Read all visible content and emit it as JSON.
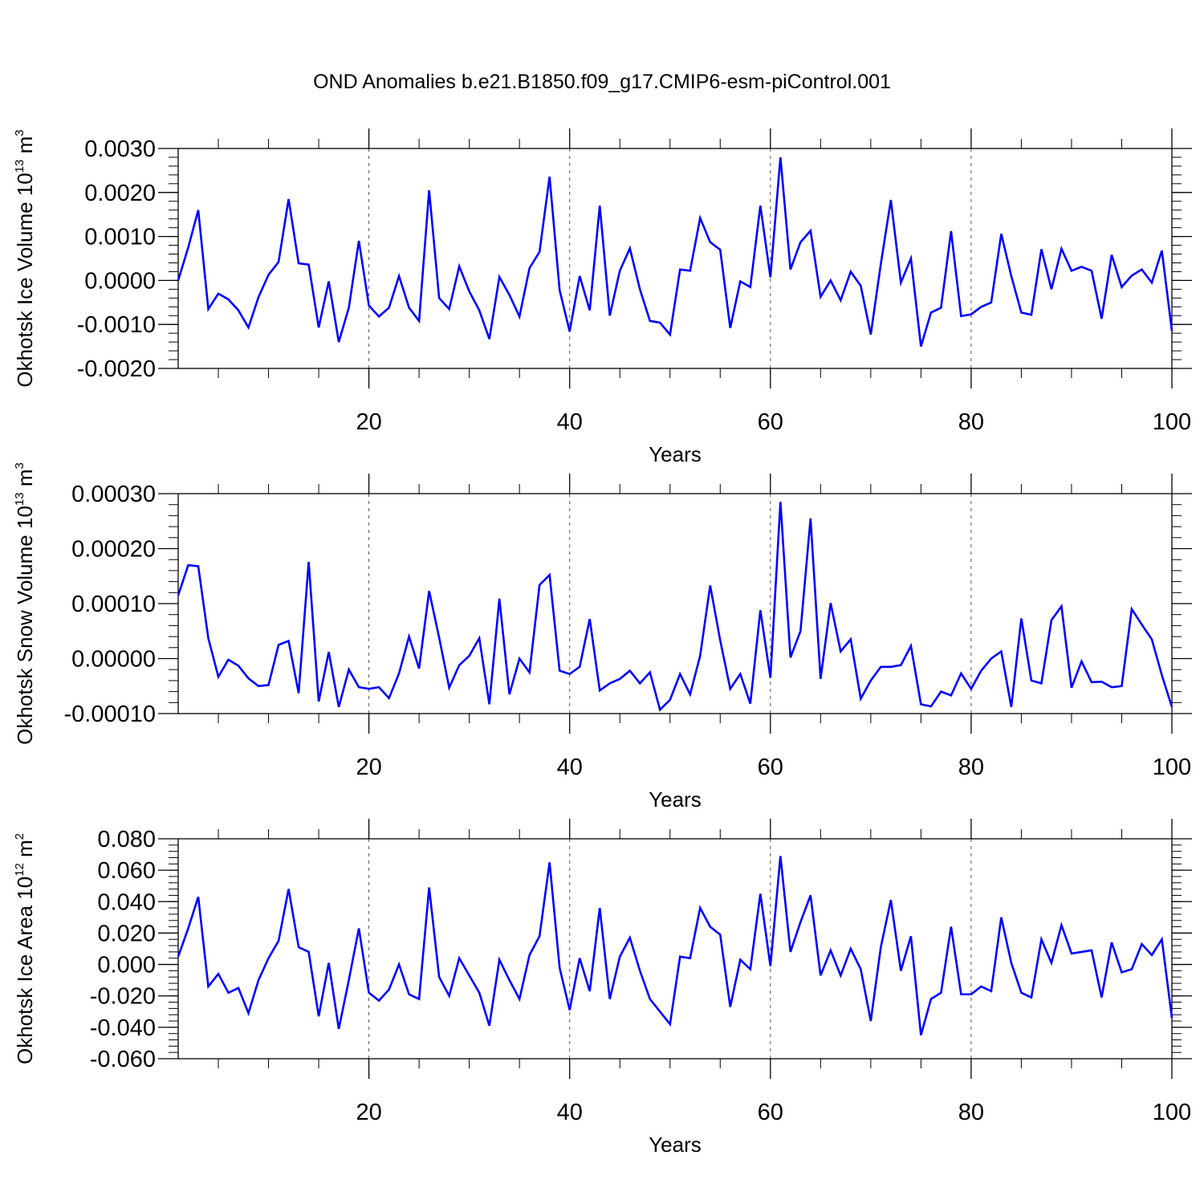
{
  "colors": {
    "line": "#0000ff",
    "axis": "#000000",
    "grid": "#555555"
  },
  "chart_data": [
    {
      "type": "line",
      "title": "OND Anomalies b.e21.B1850.f09_g17.CMIP6-esm-piControl.001",
      "xlabel": "Years",
      "ylabel": "Okhotsk Ice Volume",
      "ylabel_unit_base": "10",
      "ylabel_unit_exp": "13",
      "ylabel_unit_symbol": "m",
      "ylabel_unit_symbol_exp": "3",
      "xlim": [
        1,
        100
      ],
      "ylim": [
        -0.002,
        0.003
      ],
      "xticks": [
        "20",
        "40",
        "60",
        "80",
        "100"
      ],
      "yticks": [
        "0.0030",
        "0.0020",
        "0.0010",
        "0.0000",
        "-0.0010",
        "-0.0020"
      ],
      "grid_x": [
        20,
        40,
        60,
        80
      ],
      "series": [
        {
          "name": "Okhotsk Ice Volume",
          "values": [
            0.0,
            0.00075,
            0.0016,
            -0.00065,
            -0.0003,
            -0.00043,
            -0.00068,
            -0.00107,
            -0.00038,
            0.00013,
            0.00042,
            0.00185,
            0.00039,
            0.00036,
            -0.00107,
            -2e-05,
            -0.0014,
            -0.00062,
            0.0009,
            -0.00057,
            -0.00082,
            -0.00062,
            0.0001,
            -0.00062,
            -0.00092,
            0.00205,
            -0.0004,
            -0.00065,
            0.00032,
            -0.00025,
            -0.00068,
            -0.00133,
            8e-05,
            -0.00033,
            -0.00082,
            0.00028,
            0.00065,
            0.00236,
            -0.00022,
            -0.00116,
            0.0001,
            -0.00068,
            0.0017,
            -0.0008,
            0.00022,
            0.00073,
            -0.0002,
            -0.00092,
            -0.00096,
            -0.00123,
            0.00025,
            0.00022,
            0.00142,
            0.00087,
            0.0007,
            -0.00108,
            -2e-05,
            -0.00015,
            0.0017,
            7e-05,
            0.0028,
            0.00025,
            0.00087,
            0.00113,
            -0.00037,
            0.0,
            -0.00045,
            0.0002,
            -0.00012,
            -0.00123,
            0.00037,
            0.00183,
            -5e-05,
            0.0005,
            -0.0015,
            -0.00073,
            -0.00062,
            0.00112,
            -0.00081,
            -0.00077,
            -0.0006,
            -0.0005,
            0.00106,
            0.0001,
            -0.00073,
            -0.00078,
            0.00071,
            -0.0002,
            0.00072,
            0.00022,
            0.00031,
            0.00022,
            -0.00087,
            0.00058,
            -0.00015,
            0.00011,
            0.00025,
            -5e-05,
            0.00068,
            -0.00115
          ]
        }
      ]
    },
    {
      "type": "line",
      "xlabel": "Years",
      "ylabel": "Okhotsk Snow Volume",
      "ylabel_unit_base": "10",
      "ylabel_unit_exp": "13",
      "ylabel_unit_symbol": "m",
      "ylabel_unit_symbol_exp": "3",
      "xlim": [
        1,
        100
      ],
      "ylim": [
        -0.0001,
        0.0003
      ],
      "xticks": [
        "20",
        "40",
        "60",
        "80",
        "100"
      ],
      "yticks": [
        "0.00030",
        "0.00020",
        "0.00010",
        "0.00000",
        "-0.00010"
      ],
      "grid_x": [
        20,
        40,
        60,
        80
      ],
      "series": [
        {
          "name": "Okhotsk Snow Volume",
          "values": [
            0.000115,
            0.00017,
            0.000168,
            3.7e-05,
            -3.3e-05,
            -2e-06,
            -1.3e-05,
            -3.6e-05,
            -5e-05,
            -4.8e-05,
            2.5e-05,
            3.2e-05,
            -6.3e-05,
            0.000176,
            -7.8e-05,
            1.2e-05,
            -8.8e-05,
            -2e-05,
            -5.2e-05,
            -5.5e-05,
            -5.2e-05,
            -7.2e-05,
            -2.7e-05,
            4e-05,
            -1.8e-05,
            0.000123,
            3.8e-05,
            -5.3e-05,
            -1.2e-05,
            5e-06,
            3.7e-05,
            -8.3e-05,
            0.000109,
            -6.5e-05,
            0.0,
            -2.5e-05,
            0.000134,
            0.000152,
            -2.2e-05,
            -2.8e-05,
            -1.5e-05,
            7.2e-05,
            -5.8e-05,
            -4.5e-05,
            -3.7e-05,
            -2.2e-05,
            -4.5e-05,
            -2.5e-05,
            -9.3e-05,
            -7.5e-05,
            -2.8e-05,
            -6.5e-05,
            5e-06,
            0.000133,
            3.3e-05,
            -5.5e-05,
            -2.8e-05,
            -8.2e-05,
            8.8e-05,
            -3.5e-05,
            0.000285,
            2e-06,
            5e-05,
            0.000255,
            -3.7e-05,
            0.000101,
            1.3e-05,
            3.5e-05,
            -7.3e-05,
            -4e-05,
            -1.5e-05,
            -1.5e-05,
            -1.2e-05,
            2.3e-05,
            -8.3e-05,
            -8.7e-05,
            -6e-05,
            -6.7e-05,
            -2.7e-05,
            -5.5e-05,
            -2.2e-05,
            0.0,
            1.3e-05,
            -8.8e-05,
            7.3e-05,
            -4e-05,
            -4.5e-05,
            7e-05,
            9.5e-05,
            -5.3e-05,
            -5e-06,
            -4.3e-05,
            -4.2e-05,
            -5.2e-05,
            -5e-05,
            9e-05,
            6.2e-05,
            3.5e-05,
            -3e-05,
            -8.8e-05
          ]
        }
      ]
    },
    {
      "type": "line",
      "xlabel": "Years",
      "ylabel": "Okhotsk Ice Area",
      "ylabel_unit_base": "10",
      "ylabel_unit_exp": "12",
      "ylabel_unit_symbol": "m",
      "ylabel_unit_symbol_exp": "2",
      "xlim": [
        1,
        100
      ],
      "ylim": [
        -0.06,
        0.08
      ],
      "xticks": [
        "20",
        "40",
        "60",
        "80",
        "100"
      ],
      "yticks": [
        "0.080",
        "0.060",
        "0.040",
        "0.020",
        "0.000",
        "-0.020",
        "-0.040",
        "-0.060"
      ],
      "grid_x": [
        20,
        40,
        60,
        80
      ],
      "series": [
        {
          "name": "Okhotsk Ice Area",
          "values": [
            0.005,
            0.023,
            0.043,
            -0.014,
            -0.006,
            -0.018,
            -0.015,
            -0.031,
            -0.01,
            0.004,
            0.015,
            0.048,
            0.011,
            0.008,
            -0.033,
            0.001,
            -0.041,
            -0.01,
            0.023,
            -0.018,
            -0.023,
            -0.016,
            0.0,
            -0.019,
            -0.022,
            0.049,
            -0.008,
            -0.02,
            0.004,
            -0.007,
            -0.018,
            -0.039,
            0.003,
            -0.01,
            -0.022,
            0.006,
            0.018,
            0.065,
            -0.002,
            -0.029,
            0.004,
            -0.017,
            0.036,
            -0.022,
            0.005,
            0.017,
            -0.004,
            -0.022,
            -0.03,
            -0.038,
            0.005,
            0.004,
            0.036,
            0.024,
            0.019,
            -0.027,
            0.003,
            -0.003,
            0.045,
            -0.001,
            0.069,
            0.008,
            0.027,
            0.044,
            -0.007,
            0.009,
            -0.007,
            0.01,
            -0.003,
            -0.036,
            0.011,
            0.041,
            -0.004,
            0.018,
            -0.045,
            -0.022,
            -0.018,
            0.024,
            -0.019,
            -0.019,
            -0.014,
            -0.017,
            0.03,
            0.001,
            -0.018,
            -0.021,
            0.016,
            0.001,
            0.025,
            0.007,
            0.008,
            0.009,
            -0.021,
            0.014,
            -0.005,
            -0.003,
            0.013,
            0.006,
            0.016,
            -0.034
          ]
        }
      ]
    }
  ]
}
